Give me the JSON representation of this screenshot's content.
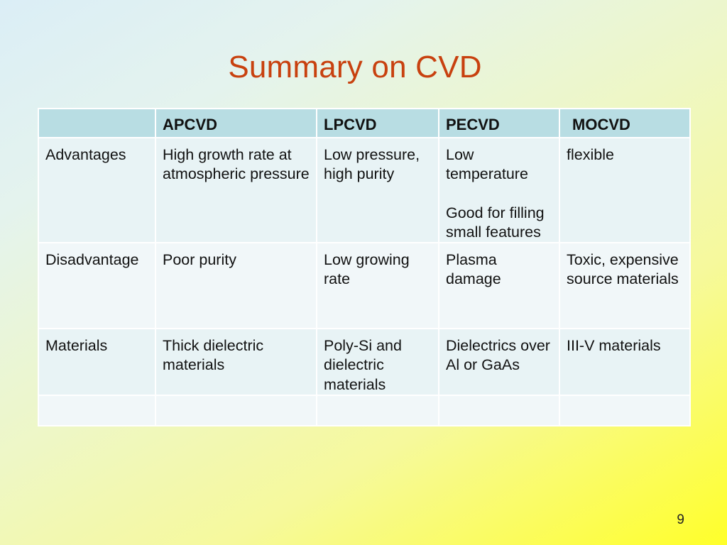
{
  "slide": {
    "title": "Summary on CVD",
    "page_number": "9"
  },
  "table": {
    "headers": [
      "",
      "APCVD",
      "LPCVD",
      "PECVD",
      "MOCVD"
    ],
    "rows": [
      {
        "label": "Advantages",
        "apcvd": "High growth rate at atmospheric pressure",
        "lpcvd_1": "Low pressure,",
        "lpcvd_2": "high purity",
        "pecvd_1": "Low temperature",
        "pecvd_2": "Good for filling small features",
        "mocvd": "flexible"
      },
      {
        "label": "Disadvantage",
        "apcvd": "Poor purity",
        "lpcvd": "Low growing rate",
        "pecvd": "Plasma damage",
        "mocvd": "Toxic, expensive source materials"
      },
      {
        "label": "Materials",
        "apcvd": "Thick dielectric materials",
        "lpcvd": "Poly-Si and dielectric materials",
        "pecvd": "Dielectrics over Al or GaAs",
        "mocvd": "III-V materials"
      }
    ]
  }
}
